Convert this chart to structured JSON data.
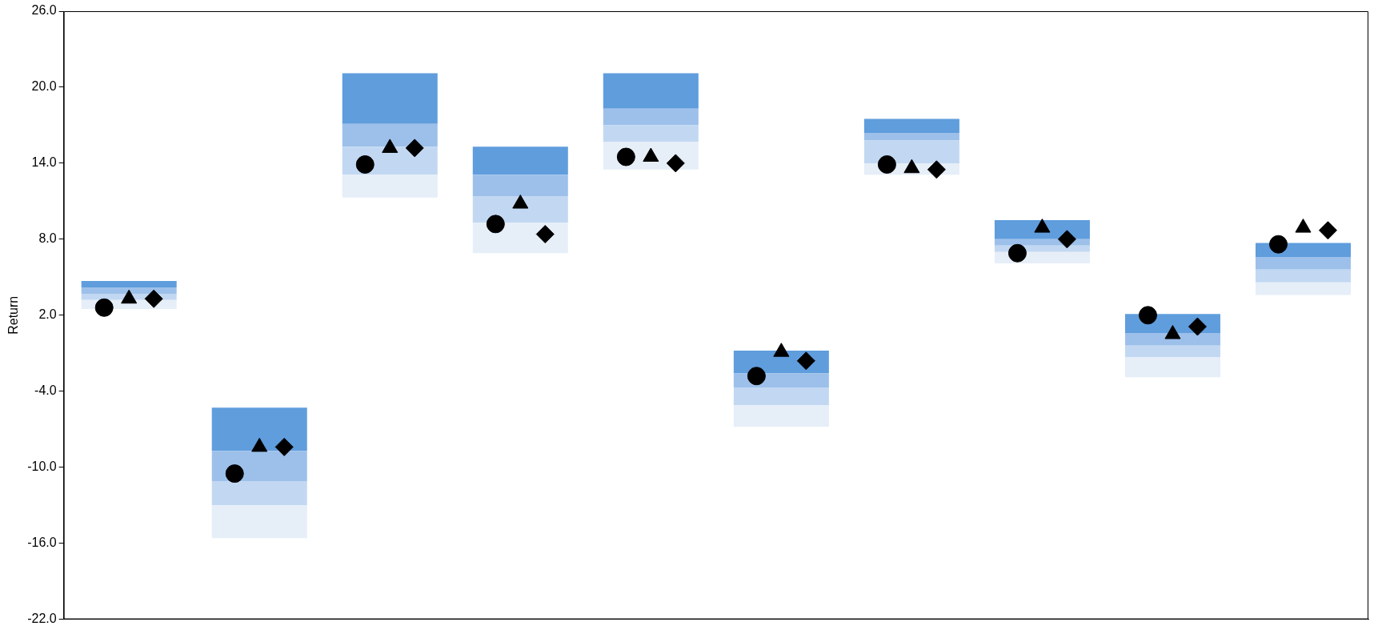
{
  "chart_data": {
    "type": "bar",
    "ylabel": "Return",
    "categories": [
      null,
      null,
      null,
      null,
      null,
      null,
      null,
      null,
      null,
      null
    ],
    "series": [
      {
        "color": "#e6eef8",
        "base": [
          2.5,
          -15.6,
          11.3,
          6.9,
          13.5,
          -6.8,
          13.1,
          6.1,
          -2.9,
          3.6
        ],
        "values": [
          0.7,
          2.6,
          1.8,
          2.4,
          2.2,
          1.7,
          0.9,
          0.9,
          1.6,
          1.0
        ]
      },
      {
        "color": "#c2d8f2",
        "base": [
          3.2,
          -13.0,
          13.1,
          9.3,
          15.7,
          -5.1,
          14.0,
          7.0,
          -1.3,
          4.6
        ],
        "values": [
          0.5,
          1.9,
          2.2,
          2.1,
          1.3,
          1.4,
          1.8,
          0.5,
          0.9,
          1.0
        ]
      },
      {
        "color": "#9dc0ea",
        "base": [
          3.7,
          -11.1,
          15.3,
          11.4,
          17.0,
          -3.7,
          15.8,
          7.5,
          -0.4,
          5.6
        ],
        "values": [
          0.5,
          2.4,
          1.8,
          1.7,
          1.3,
          1.1,
          0.6,
          0.5,
          1.0,
          1.0
        ]
      },
      {
        "color": "#5f9ddd",
        "base": [
          4.2,
          -8.7,
          17.1,
          13.1,
          18.3,
          -2.6,
          16.4,
          8.0,
          0.6,
          6.6
        ],
        "values": [
          0.5,
          3.4,
          4.0,
          2.2,
          2.8,
          1.8,
          1.1,
          1.5,
          1.5,
          1.1
        ]
      },
      {
        "type": "scatter",
        "marker": "circle",
        "color": "#000000",
        "values": [
          2.6,
          -10.5,
          13.9,
          9.2,
          14.5,
          -2.8,
          13.9,
          6.9,
          2.0,
          7.6
        ]
      },
      {
        "type": "scatter",
        "marker": "triangle",
        "color": "#000000",
        "values": [
          3.3,
          -8.4,
          15.2,
          10.8,
          14.5,
          -0.9,
          13.6,
          8.9,
          0.5,
          8.9
        ]
      },
      {
        "type": "scatter",
        "marker": "diamond",
        "color": "#000000",
        "values": [
          3.3,
          -8.4,
          15.2,
          8.4,
          14.0,
          -1.6,
          13.5,
          8.0,
          1.1,
          8.7
        ]
      }
    ],
    "ylim": [
      -22,
      26
    ],
    "yticks": [
      {
        "value": -22,
        "label": "-22.0"
      },
      {
        "value": -16,
        "label": "-16.0"
      },
      {
        "value": -10,
        "label": "-10.0"
      },
      {
        "value": -4,
        "label": "-4.0"
      },
      {
        "value": 2,
        "label": "2.0"
      },
      {
        "value": 8,
        "label": "8.0"
      },
      {
        "value": 14,
        "label": "14.0"
      },
      {
        "value": 20,
        "label": "20.0"
      },
      {
        "value": 26,
        "label": "26.0"
      }
    ],
    "grid": false,
    "legend": false
  }
}
